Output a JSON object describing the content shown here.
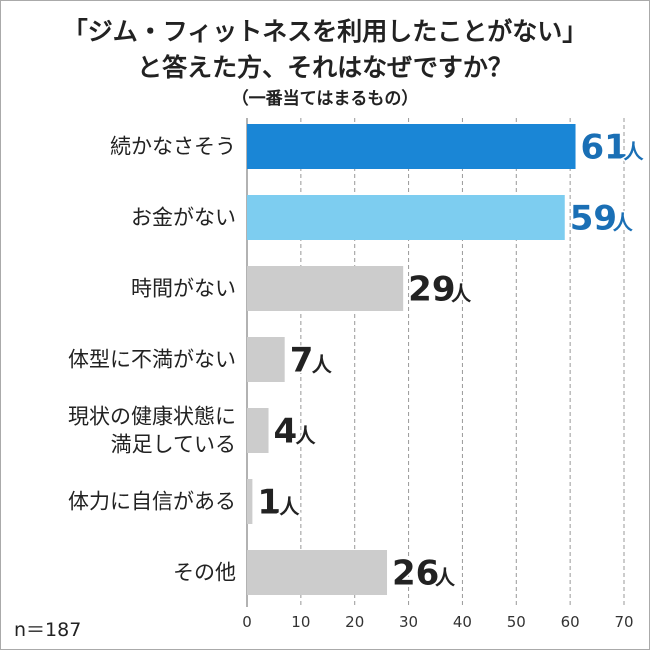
{
  "chart_data": {
    "type": "bar",
    "orientation": "horizontal",
    "title_lines": [
      "「ジム・フィットネスを利用したことがない」",
      "と答えた方、それはなぜですか？"
    ],
    "subtitle": "（一番当てはまるもの）",
    "categories": [
      [
        "続かなさそう"
      ],
      [
        "お金がない"
      ],
      [
        "時間がない"
      ],
      [
        "体型に不満がない"
      ],
      [
        "現状の健康状態に",
        "満足している"
      ],
      [
        "体力に自信がある"
      ],
      [
        "その他"
      ]
    ],
    "values": [
      61,
      59,
      29,
      7,
      4,
      1,
      26
    ],
    "value_unit": "人",
    "bar_colors": [
      "#1a86d6",
      "#7dcdf0",
      "#cccccc",
      "#cccccc",
      "#cccccc",
      "#cccccc",
      "#cccccc"
    ],
    "value_label_colors": [
      "#1a6fb5",
      "#1a6fb5",
      "#222222",
      "#222222",
      "#222222",
      "#222222",
      "#222222"
    ],
    "xlim": [
      0,
      70
    ],
    "x_ticks": [
      0,
      10,
      20,
      30,
      40,
      50,
      60,
      70
    ],
    "grid": true,
    "grid_color": "#999999",
    "n_label": "n＝187"
  }
}
